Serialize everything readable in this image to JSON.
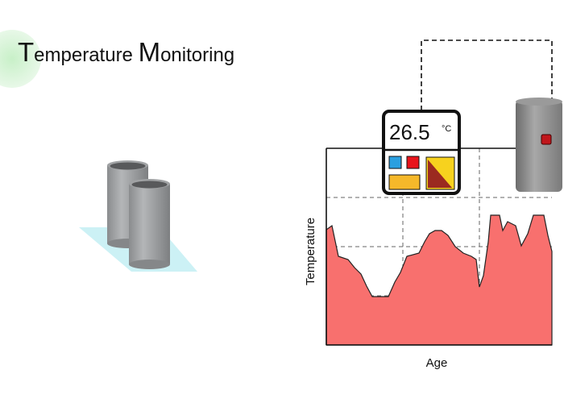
{
  "title": "Temperature Monitoring",
  "display": {
    "reading": "26.5",
    "unit": "°C"
  },
  "chart": {
    "y_label": "Temperature",
    "x_label": "Age"
  }
}
